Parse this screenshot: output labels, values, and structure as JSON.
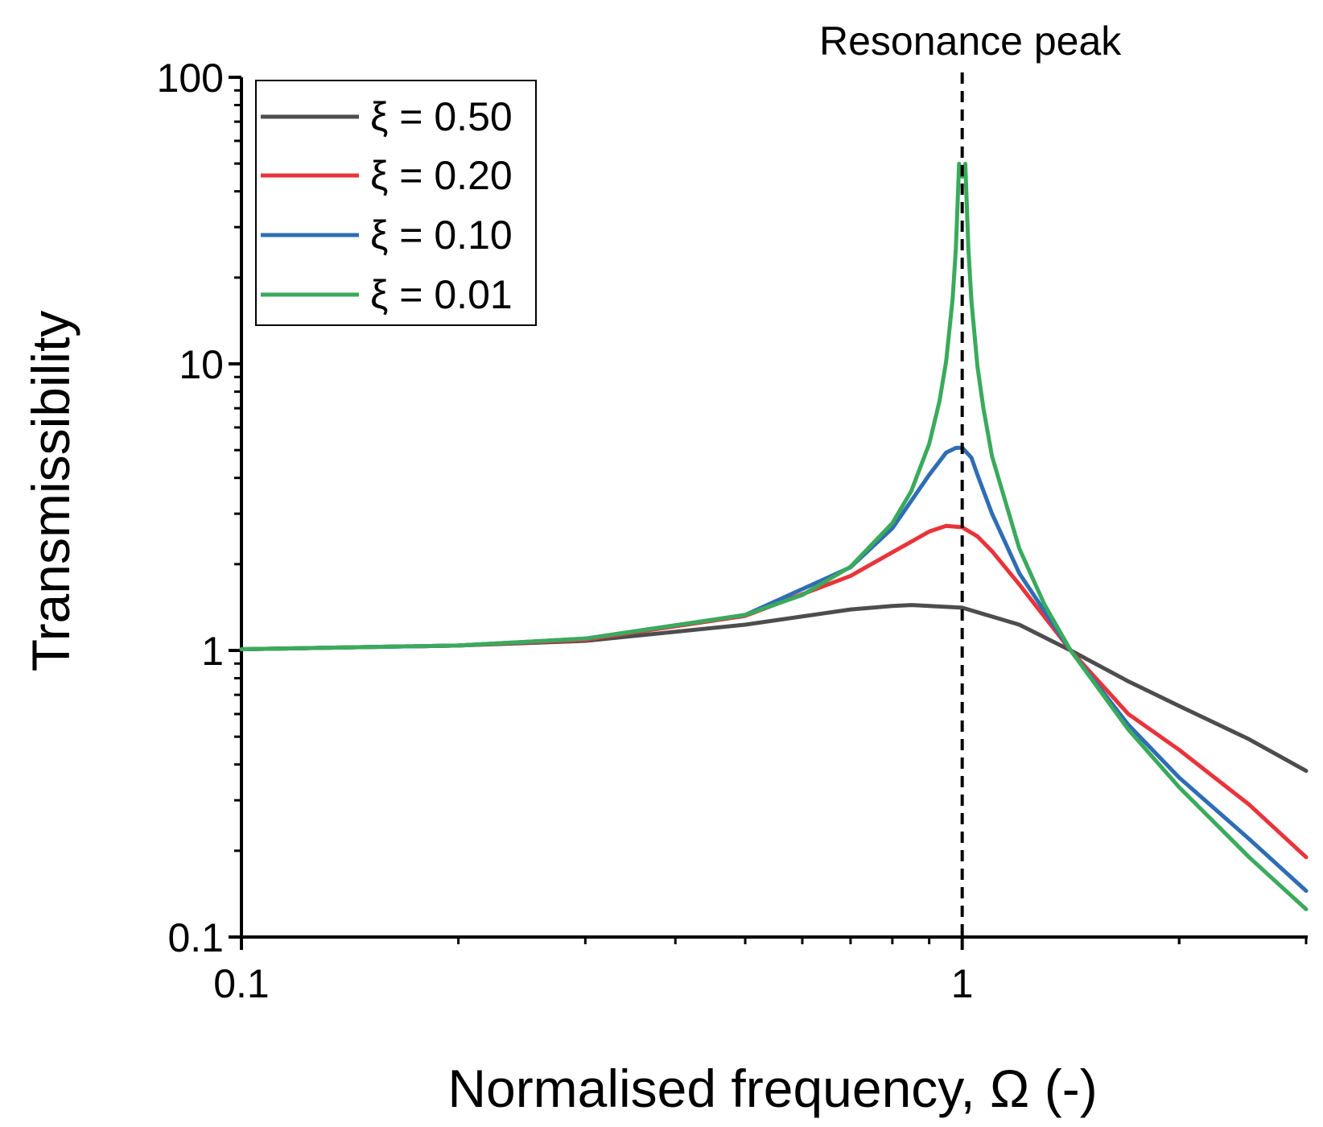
{
  "chart_data": {
    "type": "line",
    "title": "",
    "xlabel": "Normalised frequency, Ω (-)",
    "ylabel": "Transmissibility",
    "xscale": "log",
    "yscale": "log",
    "xlim": [
      0.1,
      3.0
    ],
    "ylim": [
      0.1,
      100
    ],
    "x_tick_labels": [
      "0.1",
      "1"
    ],
    "y_tick_labels": [
      "0.1",
      "1",
      "10",
      "100"
    ],
    "grid": false,
    "legend_position": "top-left",
    "annotation": {
      "text": "Resonance peak",
      "x": 1.0,
      "style": "dashed-vertical-line"
    },
    "series": [
      {
        "name": "ξ = 0.50",
        "color": "#4d4d4d",
        "x": [
          0.1,
          0.2,
          0.3,
          0.5,
          0.7,
          0.8,
          0.85,
          0.9,
          1.0,
          1.2,
          1.414,
          1.7,
          2.0,
          2.5,
          3.0
        ],
        "y": [
          1.01,
          1.04,
          1.08,
          1.23,
          1.39,
          1.43,
          1.44,
          1.43,
          1.41,
          1.23,
          1.0,
          0.78,
          0.64,
          0.49,
          0.38
        ]
      },
      {
        "name": "ξ = 0.20",
        "color": "#e8343a",
        "x": [
          0.1,
          0.2,
          0.3,
          0.5,
          0.7,
          0.8,
          0.9,
          0.95,
          1.0,
          1.05,
          1.1,
          1.2,
          1.414,
          1.7,
          2.0,
          2.5,
          3.0
        ],
        "y": [
          1.01,
          1.04,
          1.09,
          1.32,
          1.82,
          2.2,
          2.6,
          2.72,
          2.69,
          2.5,
          2.22,
          1.7,
          1.0,
          0.6,
          0.45,
          0.29,
          0.19
        ]
      },
      {
        "name": "ξ = 0.10",
        "color": "#2f6db5",
        "x": [
          0.1,
          0.2,
          0.3,
          0.5,
          0.7,
          0.8,
          0.9,
          0.95,
          0.98,
          1.0,
          1.03,
          1.05,
          1.1,
          1.2,
          1.414,
          1.7,
          2.0,
          2.5,
          3.0
        ],
        "y": [
          1.01,
          1.04,
          1.1,
          1.33,
          1.95,
          2.67,
          4.1,
          4.9,
          5.09,
          5.1,
          4.7,
          4.1,
          3.0,
          1.86,
          1.0,
          0.55,
          0.36,
          0.22,
          0.145
        ]
      },
      {
        "name": "ξ = 0.01",
        "color": "#3aaa5c",
        "x": [
          0.1,
          0.2,
          0.3,
          0.5,
          0.6,
          0.7,
          0.8,
          0.85,
          0.9,
          0.93,
          0.95,
          0.97,
          0.98,
          0.99,
          1.0,
          1.01,
          1.02,
          1.03,
          1.05,
          1.07,
          1.1,
          1.15,
          1.2,
          1.3,
          1.414,
          1.7,
          2.0,
          2.5,
          3.0
        ],
        "y": [
          1.01,
          1.04,
          1.1,
          1.33,
          1.56,
          1.96,
          2.78,
          3.6,
          5.26,
          7.4,
          10.2,
          16.9,
          25.3,
          49.9,
          45.0,
          49.9,
          25.0,
          16.5,
          9.8,
          7.0,
          4.76,
          3.26,
          2.27,
          1.45,
          1.0,
          0.53,
          0.333,
          0.19,
          0.125
        ]
      }
    ]
  }
}
